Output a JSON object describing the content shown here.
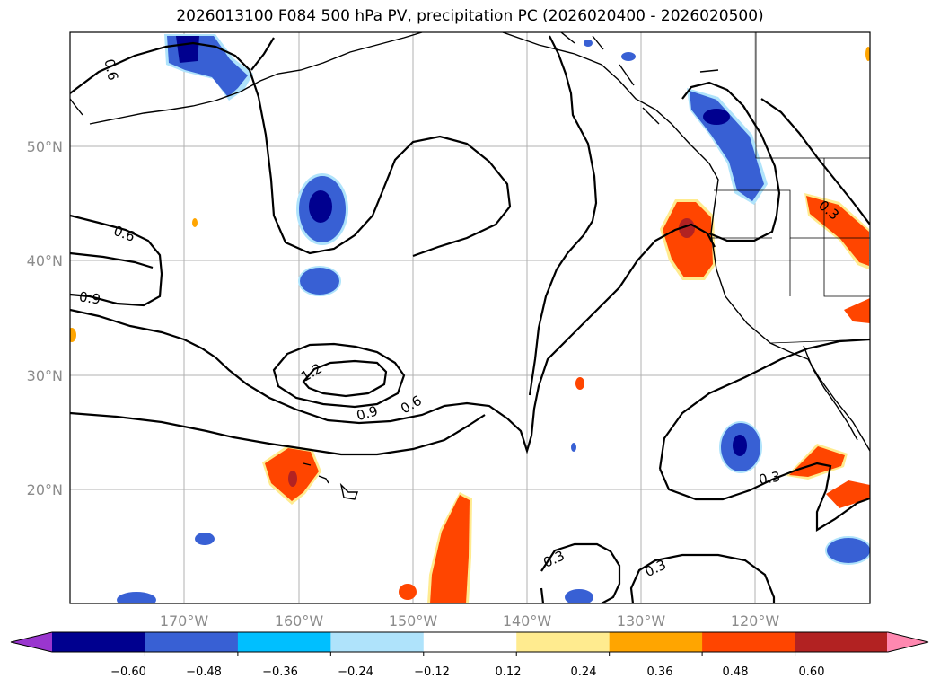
{
  "title": "2026013100 F084 500 hPa PV, precipitation PC (2026020400 - 2026020500)",
  "map": {
    "lat_labels": [
      "50°N",
      "40°N",
      "30°N",
      "20°N"
    ],
    "lon_labels": [
      "170°W",
      "160°W",
      "150°W",
      "140°W",
      "130°W",
      "120°W"
    ],
    "contour_labels": [
      "0.6",
      "0.6",
      "0.9",
      "1.2",
      "0.9",
      "0.6",
      "0.3",
      "0.3",
      "0.3",
      "0.3"
    ]
  },
  "colorbar": {
    "colors": [
      "#9a36cf",
      "#00008f",
      "#3860d4",
      "#00bfff",
      "#afe3fb",
      "#ffffff",
      "#ffeb8f",
      "#ffa500",
      "#ff4500",
      "#b22222",
      "#ff88b0"
    ],
    "tick_labels": [
      "−0.60",
      "−0.48",
      "−0.36",
      "−0.24",
      "−0.12",
      "0.12",
      "0.24",
      "0.36",
      "0.48",
      "0.60"
    ]
  }
}
